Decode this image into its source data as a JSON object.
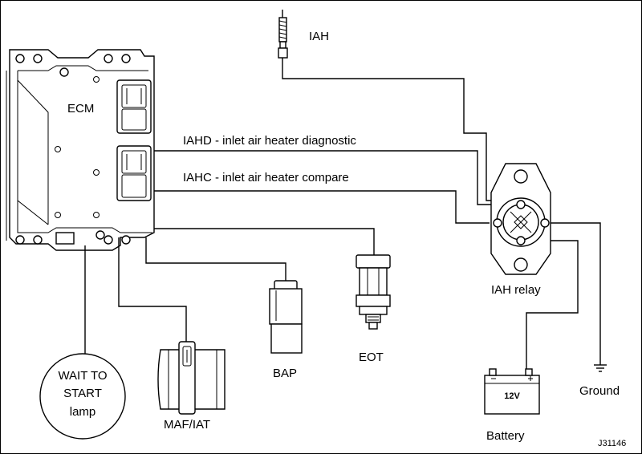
{
  "components": {
    "ecm": "ECM",
    "iah": "IAH",
    "iah_relay": "IAH relay",
    "bap": "BAP",
    "eot": "EOT",
    "maf_iat": "MAF/IAT",
    "battery": "Battery",
    "battery_voltage": "12V",
    "ground": "Ground",
    "wait_lamp_line1": "WAIT TO",
    "wait_lamp_line2": "START",
    "wait_lamp_line3": "lamp"
  },
  "signals": {
    "iahd": "IAHD - inlet air heater diagnostic",
    "iahc": "IAHC - inlet air heater compare"
  },
  "figure_id": "J31146"
}
